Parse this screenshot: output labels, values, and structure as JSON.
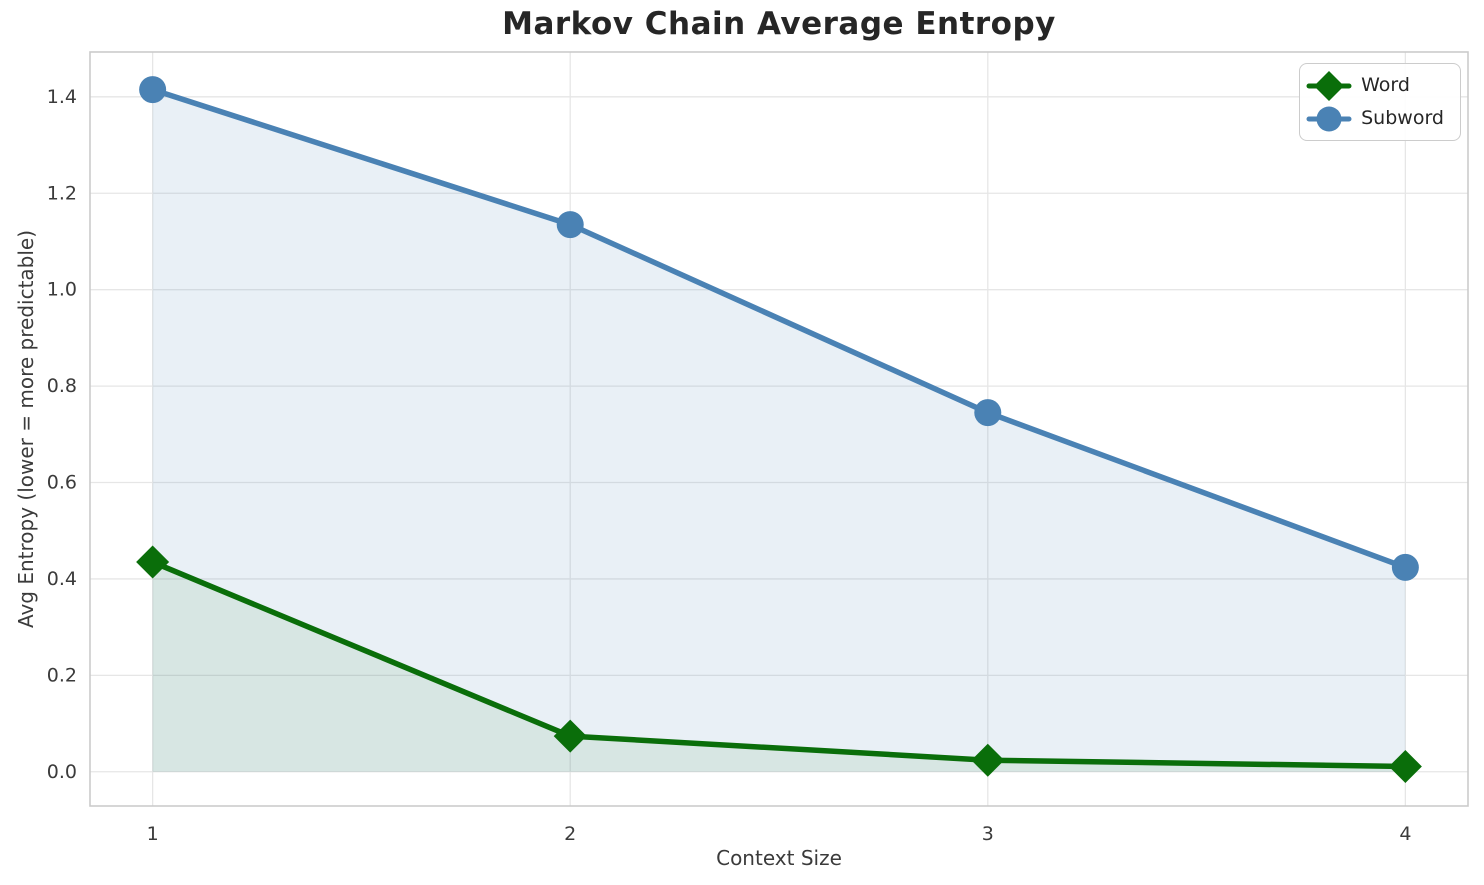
{
  "chart_data": {
    "type": "line",
    "title": "Markov Chain Average Entropy",
    "xlabel": "Context Size",
    "ylabel": "Avg Entropy (lower = more predictable)",
    "x": [
      1,
      2,
      3,
      4
    ],
    "series": [
      {
        "name": "Word",
        "values": [
          0.435,
          0.074,
          0.024,
          0.011
        ],
        "color": "#0a6e0a",
        "marker": "diamond",
        "fill_to_zero": true,
        "fill_opacity": 0.08
      },
      {
        "name": "Subword",
        "values": [
          1.415,
          1.135,
          0.745,
          0.424
        ],
        "color": "#4a82b4",
        "marker": "circle",
        "fill_to_zero": true,
        "fill_opacity": 0.12
      }
    ],
    "x_ticks": [
      1,
      2,
      3,
      4
    ],
    "y_ticks": [
      0.0,
      0.2,
      0.4,
      0.6,
      0.8,
      1.0,
      1.2,
      1.4
    ],
    "xlim": [
      0.85,
      4.15
    ],
    "ylim": [
      -0.071,
      1.493
    ],
    "grid": true,
    "legend_position": "upper right"
  },
  "colors": {
    "grid": "#e6e6e6",
    "spine": "#cbcbcb",
    "title_text": "#262626",
    "tick_text": "#3b3b3b"
  }
}
